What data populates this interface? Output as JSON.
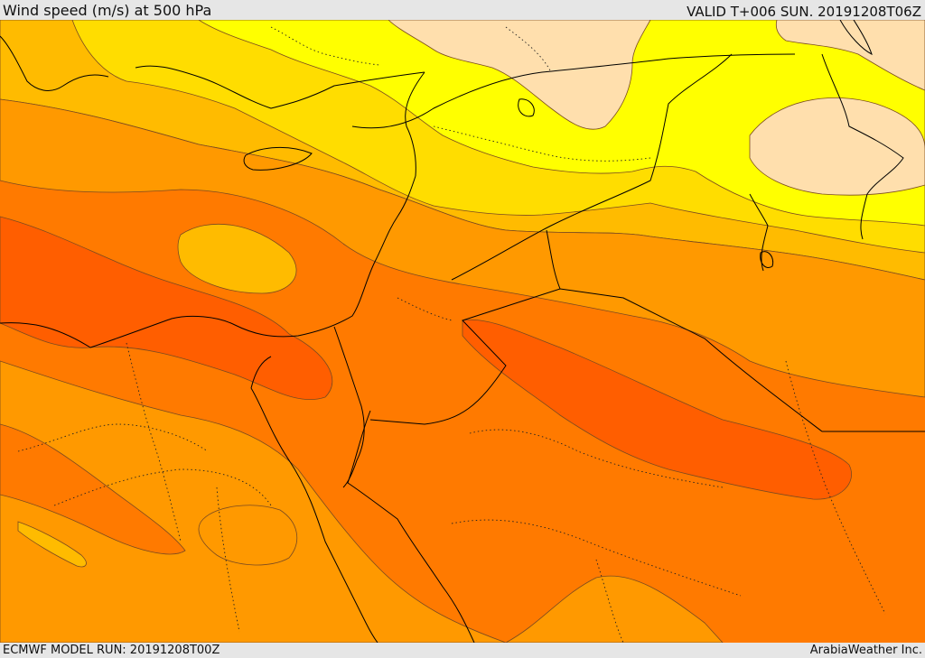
{
  "header": {
    "title": "Wind speed (m/s) at 500 hPa",
    "valid": "VALID T+006 SUN. 20191208T06Z"
  },
  "footer": {
    "model_run": "ECMWF MODEL RUN: 20191208T00Z",
    "credit": "ArabiaWeather Inc."
  },
  "colors": {
    "band_light": "#ffdfad",
    "band_yellow": "#ffff00",
    "band_gold": "#ffdd00",
    "band_amber": "#ffbb00",
    "band_orange": "#ff9900",
    "band_dark_orange": "#ff7700",
    "band_red_orange": "#ff5e00"
  }
}
